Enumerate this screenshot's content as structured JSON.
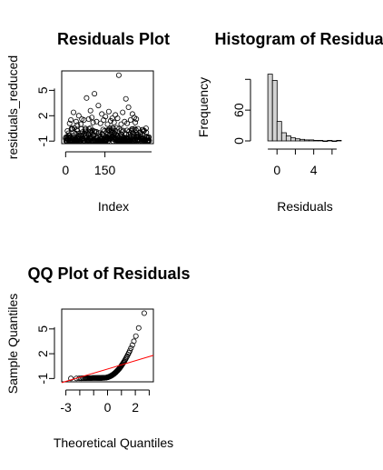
{
  "chart_data": [
    {
      "type": "scatter",
      "title": "Residuals Plot",
      "xlabel": "Index",
      "ylabel": "residuals_reduced",
      "xlim": [
        -15,
        335
      ],
      "ylim": [
        -1.3,
        7.3
      ],
      "xticks": [
        0,
        150
      ],
      "yticks": [
        -1,
        2,
        5
      ],
      "band_note_points_y_min": -1.0,
      "outliers": [
        [
          30,
          2.4
        ],
        [
          50,
          2.0
        ],
        [
          62,
          1.6
        ],
        [
          80,
          4.1
        ],
        [
          95,
          2.6
        ],
        [
          100,
          1.8
        ],
        [
          110,
          4.6
        ],
        [
          125,
          3.2
        ],
        [
          138,
          2.2
        ],
        [
          152,
          1.9
        ],
        [
          165,
          2.5
        ],
        [
          178,
          1.7
        ],
        [
          190,
          2.1
        ],
        [
          203,
          6.8
        ],
        [
          218,
          2.4
        ],
        [
          230,
          4.0
        ],
        [
          240,
          3.0
        ],
        [
          248,
          1.5
        ],
        [
          255,
          2.2
        ],
        [
          262,
          1.8
        ],
        [
          20,
          1.5
        ],
        [
          40,
          1.3
        ],
        [
          70,
          1.5
        ],
        [
          88,
          1.6
        ],
        [
          118,
          1.3
        ],
        [
          145,
          1.5
        ],
        [
          172,
          1.4
        ],
        [
          198,
          1.7
        ],
        [
          225,
          1.3
        ],
        [
          270,
          1.6
        ],
        [
          15,
          1.1
        ],
        [
          58,
          1.0
        ],
        [
          105,
          1.2
        ],
        [
          133,
          1.1
        ],
        [
          160,
          1.0
        ],
        [
          185,
          1.2
        ],
        [
          212,
          1.0
        ],
        [
          235,
          1.1
        ],
        [
          266,
          1.2
        ],
        [
          45,
          0.9
        ]
      ]
    },
    {
      "type": "bar",
      "title": "Histogram of Residuals",
      "xlabel": "Residuals",
      "ylabel": "Frequency",
      "xlim": [
        -2,
        7.2
      ],
      "ylim": [
        0,
        140
      ],
      "xticks": [
        0,
        4
      ],
      "yticks": [
        0,
        60
      ],
      "bin_edges": [
        -1,
        -0.5,
        0,
        0.5,
        1,
        1.5,
        2,
        2.5,
        3,
        3.5,
        4,
        4.5,
        5,
        5.5,
        6,
        6.5,
        7
      ],
      "values": [
        130,
        118,
        38,
        16,
        10,
        6,
        4,
        3,
        2,
        2,
        1,
        1,
        0,
        1,
        0,
        1
      ]
    },
    {
      "type": "scatter",
      "title": "QQ Plot of Residuals",
      "xlabel": "Theoretical Quantiles",
      "ylabel": "Sample Quantiles",
      "xlim": [
        -3.3,
        3.3
      ],
      "ylim": [
        -1.4,
        7.4
      ],
      "xticks": [
        -3,
        0,
        2
      ],
      "yticks": [
        -1,
        2,
        5
      ],
      "line_color": "#ff0000",
      "qq_line": [
        [
          -3.3,
          -1.5
        ],
        [
          3.3,
          1.8
        ]
      ]
    }
  ]
}
